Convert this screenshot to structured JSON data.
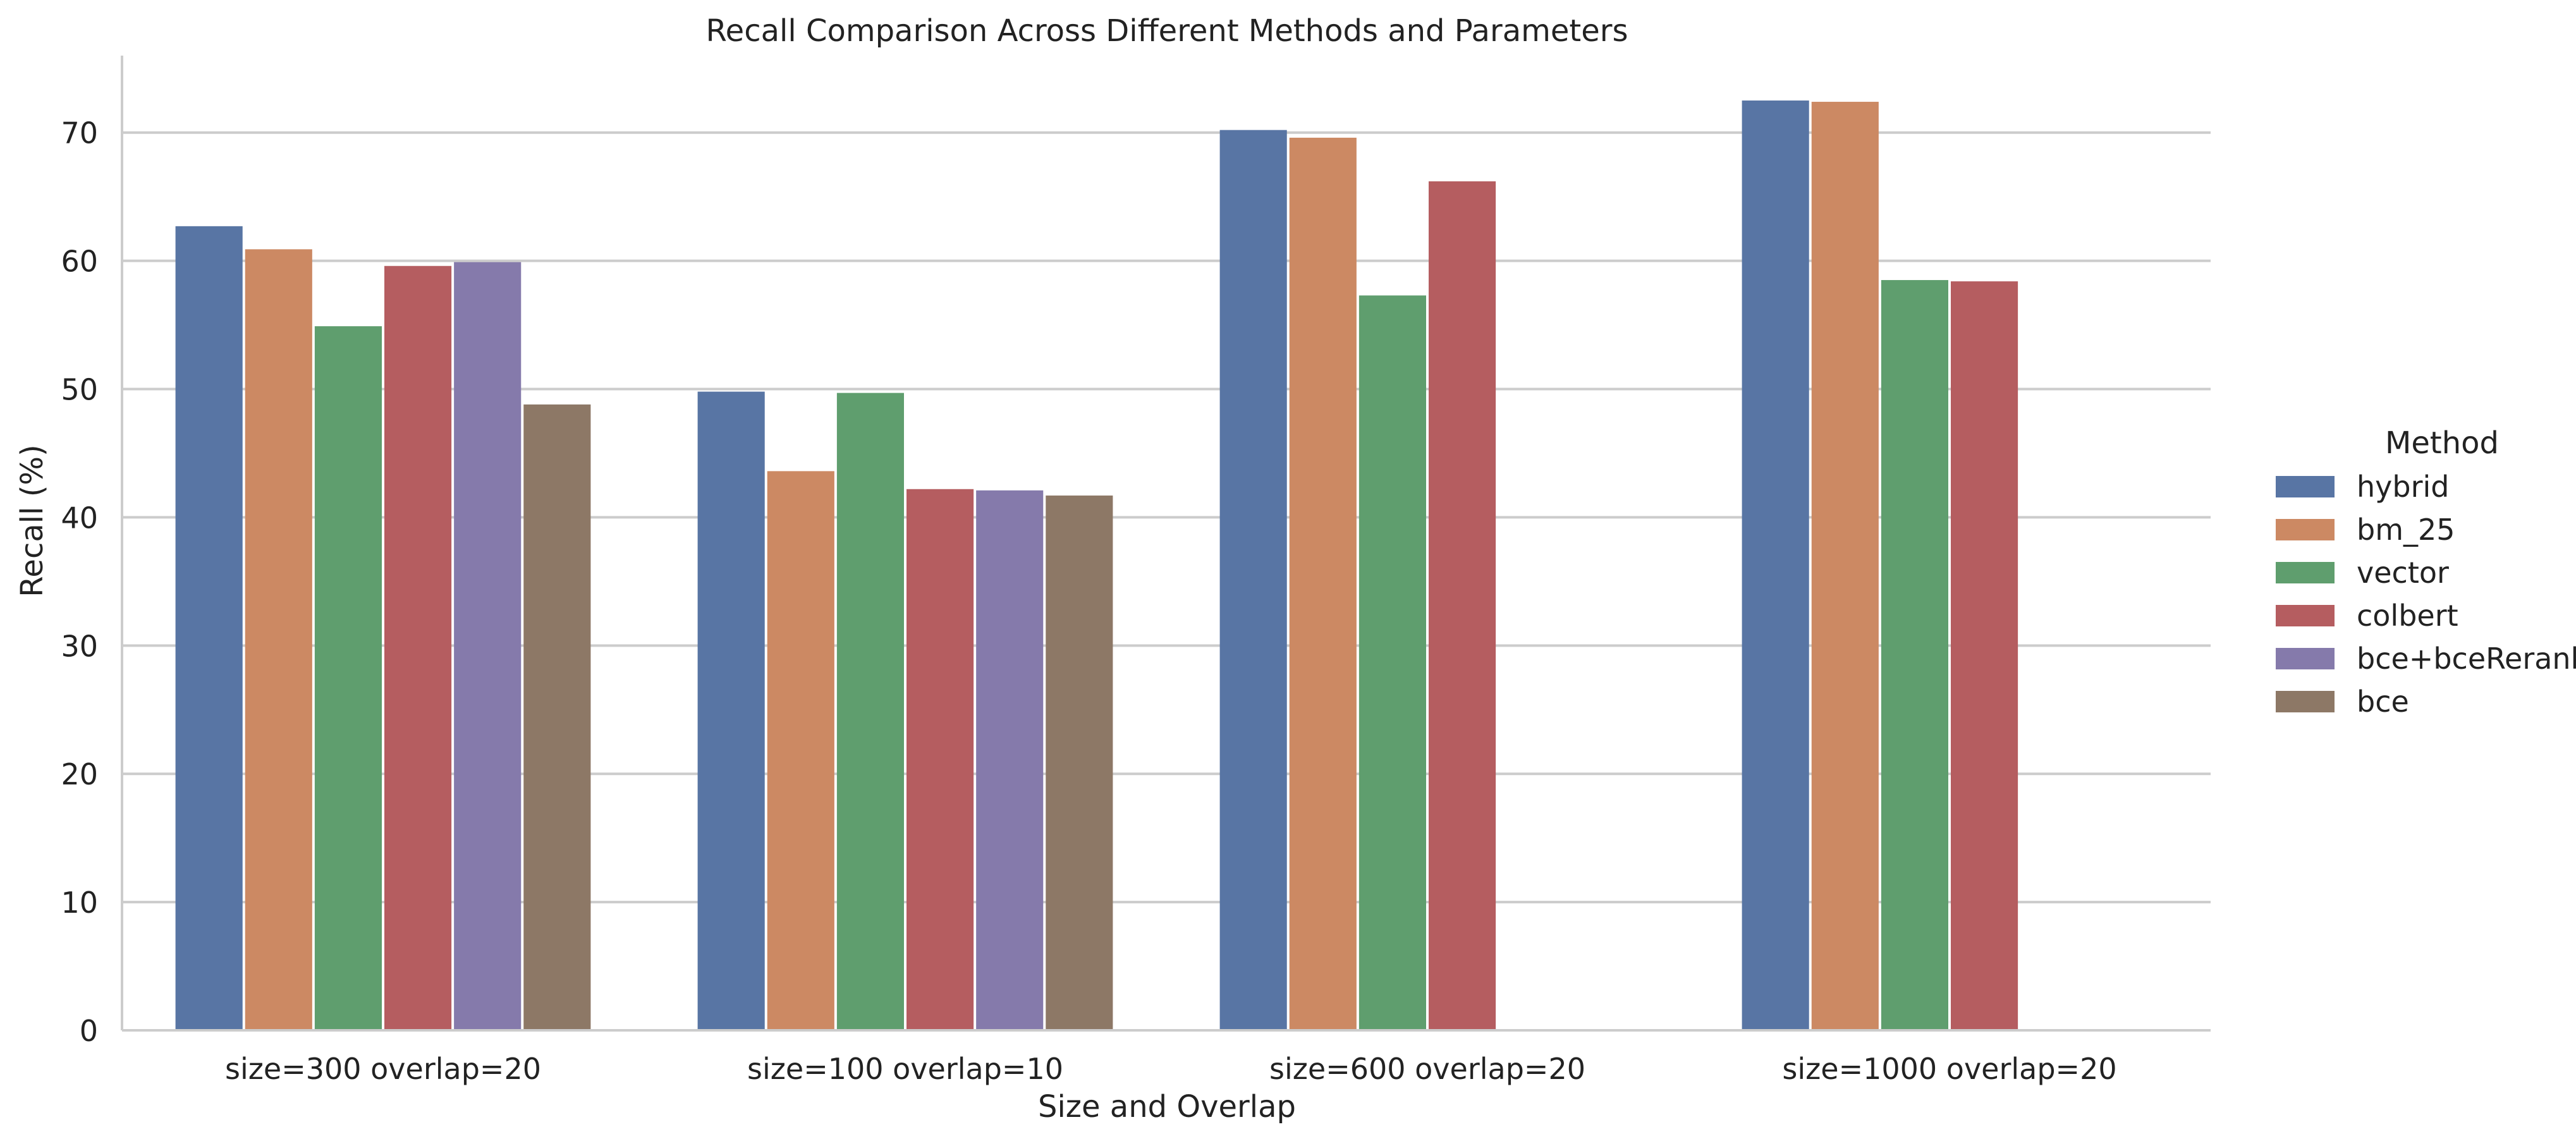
{
  "chart_data": {
    "type": "bar",
    "title": "Recall Comparison Across Different Methods and Parameters",
    "xlabel": "Size and Overlap",
    "ylabel": "Recall (%)",
    "ylim": [
      0,
      76
    ],
    "yticks": [
      0,
      10,
      20,
      30,
      40,
      50,
      60,
      70
    ],
    "grid": "horizontal",
    "legend_title": "Method",
    "legend_position": "right",
    "categories": [
      "size=300 overlap=20",
      "size=100 overlap=10",
      "size=600 overlap=20",
      "size=1000 overlap=20"
    ],
    "series": [
      {
        "name": "hybrid",
        "color": "#5875a4",
        "values": [
          62.7,
          49.8,
          70.2,
          72.5
        ]
      },
      {
        "name": "bm_25",
        "color": "#cc8963",
        "values": [
          60.9,
          43.6,
          69.6,
          72.4
        ]
      },
      {
        "name": "vector",
        "color": "#5f9e6e",
        "values": [
          54.9,
          49.7,
          57.3,
          58.5
        ]
      },
      {
        "name": "colbert",
        "color": "#b55d60",
        "values": [
          59.6,
          42.2,
          66.2,
          58.4
        ]
      },
      {
        "name": "bce+bceRerank",
        "color": "#857aab",
        "values": [
          59.9,
          42.1,
          null,
          null
        ]
      },
      {
        "name": "bce",
        "color": "#8d7866",
        "values": [
          48.8,
          41.7,
          null,
          null
        ]
      }
    ]
  }
}
